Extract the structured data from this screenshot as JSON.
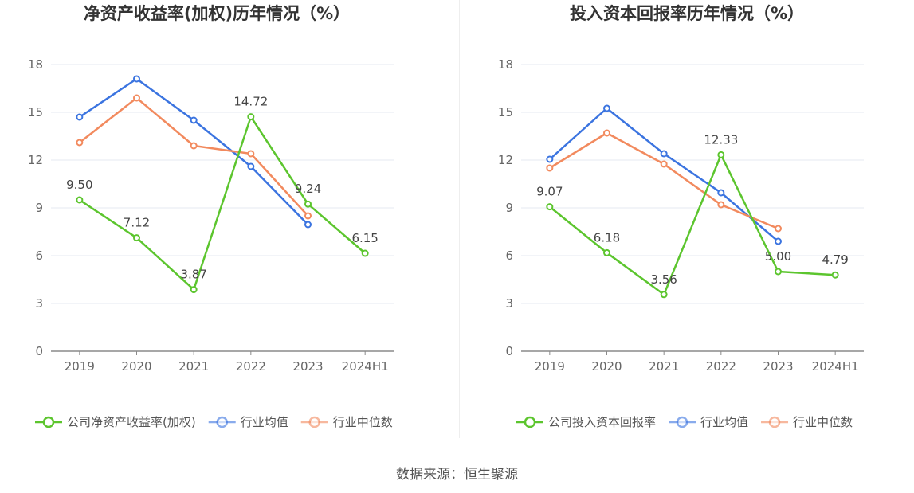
{
  "source": "数据来源：恒生聚源",
  "colors": {
    "company": "#5cc52e",
    "industry_avg": "#3b74e0",
    "industry_median": "#f28a5e",
    "grid": "#e6e9f2",
    "axis": "#8a8a8a",
    "tick": "#666666",
    "title": "#333333"
  },
  "chart_data": [
    {
      "type": "line",
      "title": "净资产收益率(加权)历年情况（%）",
      "categories": [
        "2019",
        "2020",
        "2021",
        "2022",
        "2023",
        "2024H1"
      ],
      "ylim": [
        0,
        18
      ],
      "yticks": [
        0,
        3,
        6,
        9,
        12,
        15,
        18
      ],
      "grid": true,
      "legend_position": "bottom",
      "series": [
        {
          "name": "公司净资产收益率(加权)",
          "color_key": "company",
          "values": [
            9.5,
            7.12,
            3.87,
            14.72,
            9.24,
            6.15
          ],
          "labels": [
            "9.50",
            "7.12",
            "3.87",
            "14.72",
            "9.24",
            "6.15"
          ]
        },
        {
          "name": "行业均值",
          "color_key": "industry_avg",
          "values": [
            14.7,
            17.1,
            14.5,
            11.6,
            7.95,
            null
          ]
        },
        {
          "name": "行业中位数",
          "color_key": "industry_median",
          "values": [
            13.1,
            15.9,
            12.9,
            12.4,
            8.5,
            null
          ]
        }
      ]
    },
    {
      "type": "line",
      "title": "投入资本回报率历年情况（%）",
      "categories": [
        "2019",
        "2020",
        "2021",
        "2022",
        "2023",
        "2024H1"
      ],
      "ylim": [
        0,
        18
      ],
      "yticks": [
        0,
        3,
        6,
        9,
        12,
        15,
        18
      ],
      "grid": true,
      "legend_position": "bottom",
      "series": [
        {
          "name": "公司投入资本回报率",
          "color_key": "company",
          "values": [
            9.07,
            6.18,
            3.56,
            12.33,
            5.0,
            4.79
          ],
          "labels": [
            "9.07",
            "6.18",
            "3.56",
            "12.33",
            "5.00",
            "4.79"
          ]
        },
        {
          "name": "行业均值",
          "color_key": "industry_avg",
          "values": [
            12.05,
            15.25,
            12.4,
            9.95,
            6.9,
            null
          ]
        },
        {
          "name": "行业中位数",
          "color_key": "industry_median",
          "values": [
            11.5,
            13.7,
            11.75,
            9.2,
            7.7,
            null
          ]
        }
      ]
    }
  ]
}
